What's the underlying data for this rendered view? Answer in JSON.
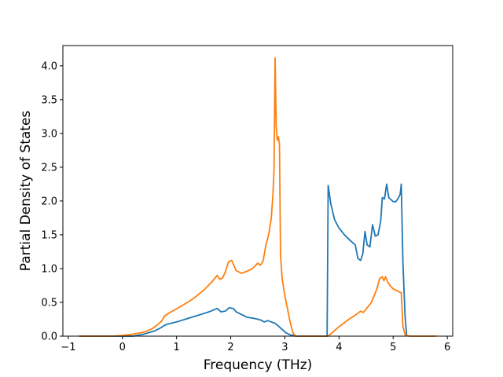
{
  "chart_data": {
    "type": "line",
    "title": "",
    "xlabel": "Frequency (THz)",
    "ylabel": "Partial Density of States",
    "xlim": [
      -1.1,
      6.1
    ],
    "ylim": [
      0,
      4.3
    ],
    "xticks": [
      -1,
      0,
      1,
      2,
      3,
      4,
      5,
      6
    ],
    "xtick_labels": [
      "−1",
      "0",
      "1",
      "2",
      "3",
      "4",
      "5",
      "6"
    ],
    "yticks": [
      0,
      0.5,
      1.0,
      1.5,
      2.0,
      2.5,
      3.0,
      3.5,
      4.0
    ],
    "ytick_labels": [
      "0.0",
      "0.5",
      "1.0",
      "1.5",
      "2.0",
      "2.5",
      "3.0",
      "3.5",
      "4.0"
    ],
    "grid": false,
    "legend": "none",
    "series": [
      {
        "color": "#1f77b4",
        "x": [
          -0.8,
          -0.3,
          0.0,
          0.2,
          0.4,
          0.6,
          0.7,
          0.8,
          1.0,
          1.2,
          1.4,
          1.6,
          1.75,
          1.82,
          1.9,
          1.97,
          2.05,
          2.1,
          2.2,
          2.3,
          2.45,
          2.55,
          2.62,
          2.68,
          2.75,
          2.82,
          2.88,
          2.95,
          3.02,
          3.1,
          3.2,
          3.6,
          3.78,
          3.8,
          3.85,
          3.92,
          4.0,
          4.1,
          4.2,
          4.3,
          4.35,
          4.4,
          4.44,
          4.48,
          4.52,
          4.57,
          4.62,
          4.67,
          4.72,
          4.77,
          4.8,
          4.84,
          4.88,
          4.92,
          5.0,
          5.05,
          5.1,
          5.13,
          5.15,
          5.18,
          5.22,
          5.25
        ],
        "y": [
          0.0,
          0.0,
          0.0,
          0.0,
          0.03,
          0.08,
          0.12,
          0.17,
          0.21,
          0.26,
          0.31,
          0.36,
          0.41,
          0.36,
          0.37,
          0.42,
          0.41,
          0.36,
          0.32,
          0.28,
          0.26,
          0.24,
          0.21,
          0.23,
          0.21,
          0.19,
          0.15,
          0.1,
          0.05,
          0.02,
          0.0,
          0.0,
          0.0,
          2.23,
          1.95,
          1.72,
          1.6,
          1.5,
          1.42,
          1.35,
          1.15,
          1.12,
          1.22,
          1.55,
          1.35,
          1.32,
          1.65,
          1.48,
          1.5,
          1.7,
          2.05,
          2.03,
          2.25,
          2.05,
          1.99,
          1.99,
          2.05,
          2.1,
          2.25,
          1.1,
          0.3,
          0.0
        ]
      },
      {
        "color": "#ff7f0e",
        "x": [
          -0.8,
          -0.2,
          0.0,
          0.2,
          0.4,
          0.55,
          0.65,
          0.72,
          0.78,
          0.9,
          1.1,
          1.3,
          1.5,
          1.65,
          1.75,
          1.8,
          1.85,
          1.9,
          1.96,
          2.02,
          2.1,
          2.2,
          2.3,
          2.4,
          2.5,
          2.55,
          2.6,
          2.65,
          2.7,
          2.75,
          2.78,
          2.8,
          2.82,
          2.84,
          2.86,
          2.88,
          2.9,
          2.92,
          2.95,
          3.0,
          3.05,
          3.1,
          3.15,
          3.2,
          3.6,
          3.8,
          3.9,
          4.0,
          4.1,
          4.2,
          4.3,
          4.4,
          4.45,
          4.5,
          4.55,
          4.6,
          4.65,
          4.7,
          4.75,
          4.8,
          4.83,
          4.86,
          4.9,
          4.95,
          5.0,
          5.05,
          5.1,
          5.15,
          5.18,
          5.22,
          5.3,
          5.5,
          5.8
        ],
        "y": [
          0.0,
          0.0,
          0.01,
          0.03,
          0.06,
          0.11,
          0.17,
          0.22,
          0.3,
          0.36,
          0.45,
          0.55,
          0.68,
          0.8,
          0.9,
          0.84,
          0.86,
          0.95,
          1.1,
          1.12,
          0.97,
          0.93,
          0.96,
          1.0,
          1.08,
          1.05,
          1.12,
          1.35,
          1.5,
          1.75,
          2.1,
          2.45,
          4.12,
          3.1,
          2.9,
          2.95,
          2.85,
          1.2,
          0.85,
          0.6,
          0.4,
          0.2,
          0.05,
          0.0,
          0.0,
          0.0,
          0.07,
          0.14,
          0.2,
          0.26,
          0.31,
          0.37,
          0.35,
          0.4,
          0.45,
          0.5,
          0.6,
          0.7,
          0.85,
          0.88,
          0.82,
          0.88,
          0.8,
          0.74,
          0.7,
          0.68,
          0.66,
          0.64,
          0.15,
          0.02,
          0.0,
          0.0,
          0.0
        ]
      }
    ]
  }
}
